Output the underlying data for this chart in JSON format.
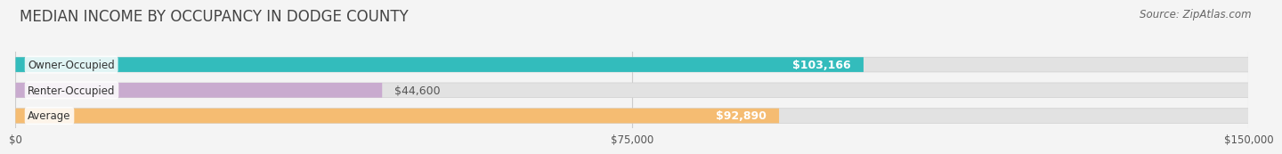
{
  "title": "MEDIAN INCOME BY OCCUPANCY IN DODGE COUNTY",
  "source": "Source: ZipAtlas.com",
  "categories": [
    "Owner-Occupied",
    "Renter-Occupied",
    "Average"
  ],
  "values": [
    103166,
    44600,
    92890
  ],
  "labels": [
    "$103,166",
    "$44,600",
    "$92,890"
  ],
  "label_inside": [
    true,
    false,
    true
  ],
  "bar_colors": [
    "#33BCBC",
    "#C9ABCF",
    "#F5BC72"
  ],
  "bar_bg_color": "#E2E2E2",
  "max_value": 150000,
  "xticks": [
    0,
    75000,
    150000
  ],
  "xtick_labels": [
    "$0",
    "$75,000",
    "$150,000"
  ],
  "title_fontsize": 12,
  "source_fontsize": 8.5,
  "label_fontsize": 9,
  "cat_fontsize": 8.5,
  "background_color": "#F4F4F4",
  "bar_height": 0.58,
  "fig_width": 14.06,
  "fig_height": 1.96
}
